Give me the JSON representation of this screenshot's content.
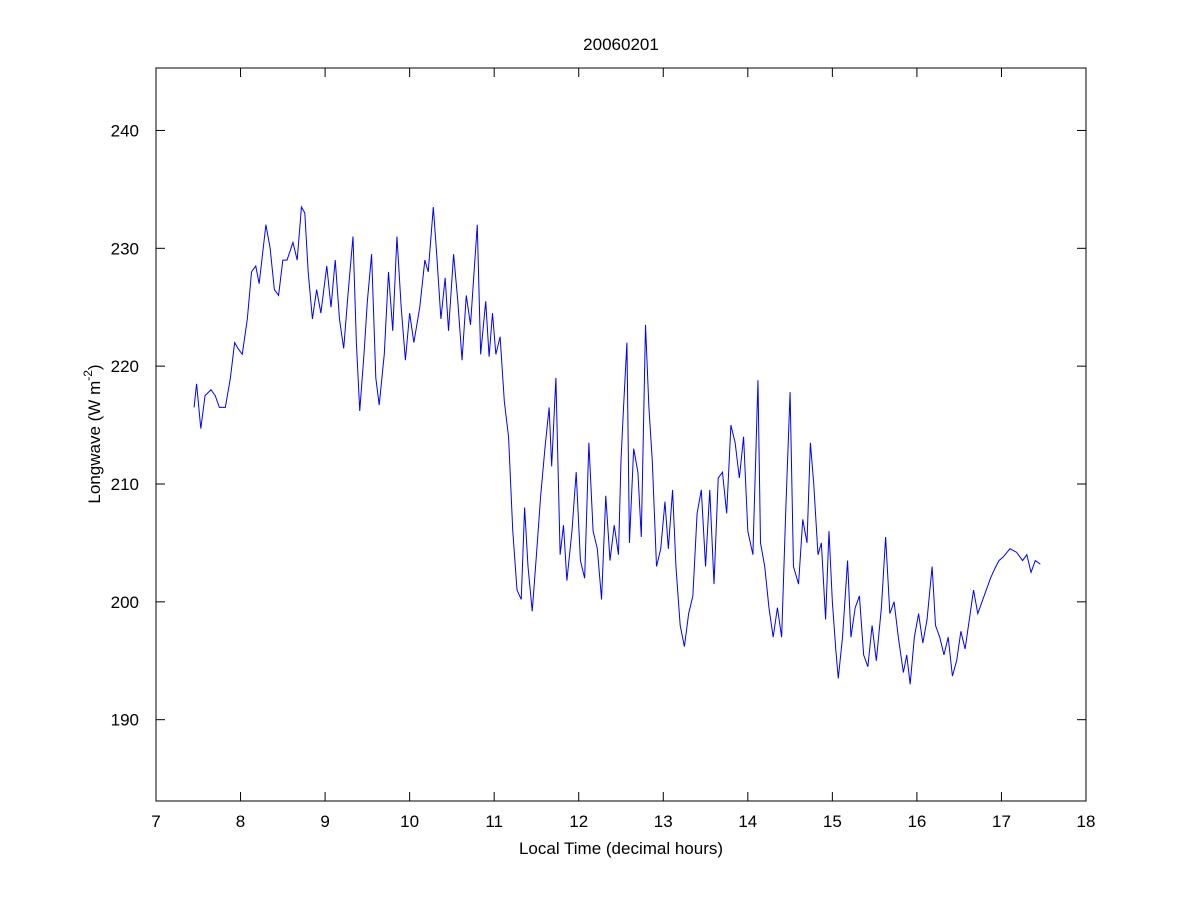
{
  "chart_data": {
    "type": "line",
    "title": "20060201",
    "x_label": "Local Time (decimal hours)",
    "y_label": [
      "Longwave (W m",
      "-2",
      ")"
    ],
    "color": "#0000ff",
    "xlim": [
      7,
      18
    ],
    "xticks": [
      7,
      8,
      9,
      10,
      11,
      12,
      13,
      14,
      15,
      16,
      17,
      18
    ],
    "ylim": [
      183.1,
      245.3
    ],
    "yticks": [
      190,
      200,
      210,
      220,
      230,
      240
    ],
    "x": [
      7.45,
      7.48,
      7.53,
      7.58,
      7.65,
      7.7,
      7.75,
      7.82,
      7.88,
      7.93,
      7.97,
      8.02,
      8.08,
      8.13,
      8.18,
      8.22,
      8.3,
      8.35,
      8.4,
      8.45,
      8.5,
      8.55,
      8.62,
      8.67,
      8.72,
      8.76,
      8.8,
      8.85,
      8.9,
      8.95,
      9.02,
      9.07,
      9.12,
      9.17,
      9.22,
      9.27,
      9.33,
      9.37,
      9.41,
      9.46,
      9.5,
      9.55,
      9.6,
      9.64,
      9.7,
      9.75,
      9.8,
      9.85,
      9.9,
      9.95,
      10.0,
      10.05,
      10.12,
      10.18,
      10.22,
      10.28,
      10.32,
      10.37,
      10.42,
      10.46,
      10.52,
      10.57,
      10.62,
      10.67,
      10.72,
      10.8,
      10.84,
      10.9,
      10.94,
      10.98,
      11.02,
      11.07,
      11.12,
      11.17,
      11.22,
      11.27,
      11.32,
      11.36,
      11.4,
      11.45,
      11.5,
      11.55,
      11.6,
      11.65,
      11.68,
      11.73,
      11.78,
      11.82,
      11.86,
      11.92,
      11.97,
      12.02,
      12.07,
      12.12,
      12.17,
      12.22,
      12.27,
      12.32,
      12.37,
      12.42,
      12.47,
      12.5,
      12.53,
      12.57,
      12.6,
      12.65,
      12.7,
      12.74,
      12.79,
      12.83,
      12.87,
      12.92,
      12.97,
      13.02,
      13.06,
      13.11,
      13.15,
      13.2,
      13.25,
      13.3,
      13.35,
      13.4,
      13.45,
      13.5,
      13.55,
      13.6,
      13.65,
      13.7,
      13.75,
      13.8,
      13.85,
      13.9,
      13.95,
      14.0,
      14.06,
      14.12,
      14.15,
      14.2,
      14.25,
      14.3,
      14.35,
      14.4,
      14.45,
      14.5,
      14.54,
      14.6,
      14.65,
      14.7,
      14.74,
      14.78,
      14.83,
      14.87,
      14.92,
      14.96,
      15.0,
      15.04,
      15.07,
      15.12,
      15.18,
      15.22,
      15.27,
      15.32,
      15.37,
      15.42,
      15.47,
      15.52,
      15.58,
      15.63,
      15.68,
      15.73,
      15.78,
      15.84,
      15.88,
      15.92,
      15.97,
      16.02,
      16.07,
      16.12,
      16.18,
      16.22,
      16.27,
      16.32,
      16.37,
      16.42,
      16.47,
      16.52,
      16.57,
      16.62,
      16.67,
      16.72,
      16.77,
      16.82,
      16.87,
      16.92,
      16.97,
      17.02,
      17.1,
      17.18,
      17.25,
      17.3,
      17.35,
      17.4,
      17.46
    ],
    "values": [
      216.5,
      218.5,
      214.7,
      217.5,
      218,
      217.5,
      216.5,
      216.5,
      219,
      222,
      221.5,
      221,
      224,
      228,
      228.5,
      227,
      232,
      230,
      226.5,
      226,
      229,
      229,
      230.5,
      229,
      233.5,
      233,
      228,
      224,
      226.5,
      224.5,
      228.5,
      225,
      229,
      224,
      221.5,
      226,
      231,
      222,
      216.2,
      221,
      225.5,
      229.5,
      219,
      216.7,
      221,
      228,
      223,
      231,
      225,
      220.5,
      224.5,
      222,
      225,
      229,
      228,
      233.5,
      229.5,
      224,
      227.5,
      223,
      229.5,
      225.5,
      220.5,
      226,
      223.5,
      232,
      221,
      225.5,
      220.8,
      224.5,
      221,
      222.5,
      217,
      214,
      206,
      201,
      200.2,
      208,
      203,
      199.2,
      204,
      209,
      213,
      216.5,
      211.5,
      219,
      204,
      206.5,
      201.8,
      206,
      211,
      203.5,
      202,
      213.5,
      206,
      204.5,
      200.2,
      209,
      203.5,
      206.5,
      204,
      212,
      216.5,
      222,
      205,
      213,
      211,
      205.5,
      223.5,
      216.5,
      212,
      203,
      204.5,
      208.5,
      204.5,
      209.5,
      203,
      198,
      196.2,
      199,
      200.5,
      207.5,
      209.5,
      203,
      209.5,
      201.5,
      210.5,
      211,
      207.5,
      215,
      213.5,
      210.5,
      214,
      206,
      204,
      218.8,
      205,
      203,
      199.5,
      197,
      199.5,
      197,
      208,
      217.8,
      203,
      201.5,
      207,
      205,
      213.5,
      210,
      204,
      205,
      198.5,
      206,
      200,
      196,
      193.5,
      197,
      203.5,
      197,
      199.5,
      200.5,
      195.5,
      194.5,
      198,
      195,
      199.5,
      205.5,
      199,
      200,
      197,
      194,
      195.5,
      193,
      197,
      199,
      196.5,
      198.5,
      203,
      198,
      197,
      195.5,
      197,
      193.7,
      195,
      197.5,
      196,
      198.5,
      201,
      199,
      200,
      201,
      202,
      202.8,
      203.5,
      203.8,
      204.5,
      204.2,
      203.5,
      204,
      202.5,
      203.5,
      203.2
    ]
  }
}
